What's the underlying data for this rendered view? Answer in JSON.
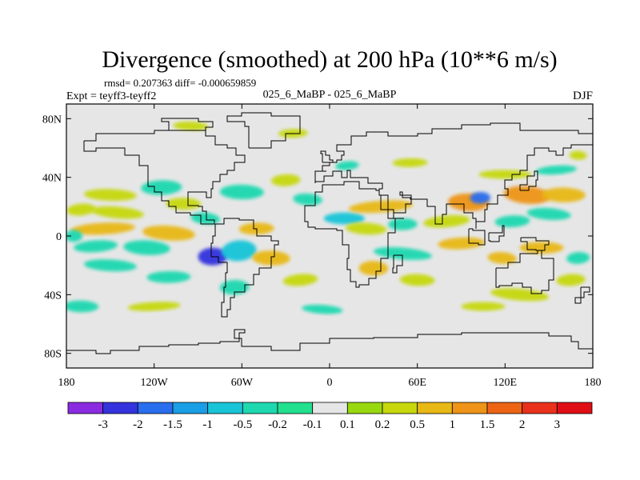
{
  "chart_data": {
    "type": "heatmap",
    "title": "Divergence (smoothed) at 200 hPa (10**6 m/s)",
    "stats_text": "rmsd= 0.207363 diff= -0.000659859",
    "expt_text": "Expt = teyff3-teyff2",
    "case_text": "025_6_MaBP - 025_6_MaBP",
    "season": "DJF",
    "x_range": [
      -180,
      180
    ],
    "y_range": [
      -90,
      90
    ],
    "x_ticks": [
      {
        "value": -180,
        "label": "180"
      },
      {
        "value": -120,
        "label": "120W"
      },
      {
        "value": -60,
        "label": "60W"
      },
      {
        "value": 0,
        "label": "0"
      },
      {
        "value": 60,
        "label": "60E"
      },
      {
        "value": 120,
        "label": "120E"
      },
      {
        "value": 180,
        "label": "180"
      }
    ],
    "y_ticks": [
      {
        "value": 80,
        "label": "80N"
      },
      {
        "value": 40,
        "label": "40N"
      },
      {
        "value": 0,
        "label": "0"
      },
      {
        "value": -40,
        "label": "40S"
      },
      {
        "value": -80,
        "label": "80S"
      }
    ],
    "background_color": "#e6e6e6",
    "colorbar": {
      "labels": [
        "-3",
        "-2",
        "-1.5",
        "-1",
        "-0.5",
        "-0.2",
        "-0.1",
        "0.1",
        "0.2",
        "0.5",
        "1",
        "1.5",
        "2",
        "3"
      ],
      "colors": [
        "#8a2be2",
        "#3333dd",
        "#2a6ef0",
        "#1a9ee6",
        "#18c4d8",
        "#1ed8b0",
        "#22e08e",
        "#e6e6e6",
        "#98d80e",
        "#c6d80c",
        "#e8b814",
        "#ee9418",
        "#ec6414",
        "#e8301a",
        "#e00e14"
      ]
    },
    "anomalies": [
      {
        "lon": -170,
        "lat": 18,
        "rx": 10,
        "ry": 4,
        "v": 0.3
      },
      {
        "lon": -150,
        "lat": 28,
        "rx": 18,
        "ry": 4,
        "v": 0.4
      },
      {
        "lon": -115,
        "lat": 33,
        "rx": 14,
        "ry": 5,
        "v": -0.35
      },
      {
        "lon": -145,
        "lat": 16,
        "rx": 18,
        "ry": 4,
        "v": 0.35
      },
      {
        "lon": -100,
        "lat": 22,
        "rx": 12,
        "ry": 4,
        "v": 0.3
      },
      {
        "lon": -155,
        "lat": 5,
        "rx": 22,
        "ry": 4,
        "v": 0.6
      },
      {
        "lon": -110,
        "lat": 2,
        "rx": 18,
        "ry": 5,
        "v": 0.5
      },
      {
        "lon": -175,
        "lat": 0,
        "rx": 6,
        "ry": 4,
        "v": -0.3
      },
      {
        "lon": -160,
        "lat": -7,
        "rx": 15,
        "ry": 4,
        "v": -0.4
      },
      {
        "lon": -125,
        "lat": -8,
        "rx": 16,
        "ry": 5,
        "v": -0.5
      },
      {
        "lon": -80,
        "lat": -14,
        "rx": 10,
        "ry": 6,
        "v": -2.5
      },
      {
        "lon": -62,
        "lat": -10,
        "rx": 12,
        "ry": 7,
        "v": -0.9
      },
      {
        "lon": -40,
        "lat": -15,
        "rx": 13,
        "ry": 5,
        "v": 0.8
      },
      {
        "lon": -50,
        "lat": 5,
        "rx": 12,
        "ry": 4,
        "v": 0.5
      },
      {
        "lon": -85,
        "lat": 12,
        "rx": 10,
        "ry": 4,
        "v": -0.5
      },
      {
        "lon": -60,
        "lat": 30,
        "rx": 15,
        "ry": 5,
        "v": -0.5
      },
      {
        "lon": -30,
        "lat": 38,
        "rx": 10,
        "ry": 4,
        "v": 0.3
      },
      {
        "lon": -15,
        "lat": 25,
        "rx": 10,
        "ry": 4,
        "v": -0.4
      },
      {
        "lon": 10,
        "lat": 12,
        "rx": 14,
        "ry": 4,
        "v": -0.6
      },
      {
        "lon": 35,
        "lat": 20,
        "rx": 22,
        "ry": 4,
        "v": 0.5
      },
      {
        "lon": 25,
        "lat": 5,
        "rx": 14,
        "ry": 4,
        "v": 0.4
      },
      {
        "lon": 50,
        "lat": 8,
        "rx": 10,
        "ry": 4,
        "v": -0.4
      },
      {
        "lon": 80,
        "lat": 10,
        "rx": 16,
        "ry": 4,
        "v": 0.3
      },
      {
        "lon": 95,
        "lat": 23,
        "rx": 14,
        "ry": 6,
        "v": 1.0
      },
      {
        "lon": 103,
        "lat": 26,
        "rx": 7,
        "ry": 4,
        "v": -1.8
      },
      {
        "lon": 135,
        "lat": 28,
        "rx": 16,
        "ry": 6,
        "v": 1.1
      },
      {
        "lon": 160,
        "lat": 28,
        "rx": 15,
        "ry": 5,
        "v": 0.5
      },
      {
        "lon": 125,
        "lat": 10,
        "rx": 12,
        "ry": 4,
        "v": -0.5
      },
      {
        "lon": 150,
        "lat": 15,
        "rx": 15,
        "ry": 4,
        "v": -0.3
      },
      {
        "lon": 120,
        "lat": 42,
        "rx": 18,
        "ry": 3,
        "v": 0.3
      },
      {
        "lon": 155,
        "lat": 45,
        "rx": 14,
        "ry": 3,
        "v": -0.3
      },
      {
        "lon": 170,
        "lat": 55,
        "rx": 6,
        "ry": 3,
        "v": 0.3
      },
      {
        "lon": 55,
        "lat": 50,
        "rx": 12,
        "ry": 3,
        "v": 0.3
      },
      {
        "lon": 12,
        "lat": 48,
        "rx": 8,
        "ry": 3,
        "v": -0.3
      },
      {
        "lon": -95,
        "lat": 75,
        "rx": 12,
        "ry": 3,
        "v": 0.3
      },
      {
        "lon": -25,
        "lat": 70,
        "rx": 10,
        "ry": 3,
        "v": 0.3
      },
      {
        "lon": 50,
        "lat": -12,
        "rx": 20,
        "ry": 4,
        "v": -0.5
      },
      {
        "lon": 30,
        "lat": -22,
        "rx": 10,
        "ry": 5,
        "v": 0.6
      },
      {
        "lon": 90,
        "lat": -5,
        "rx": 16,
        "ry": 4,
        "v": 0.5
      },
      {
        "lon": 118,
        "lat": -15,
        "rx": 10,
        "ry": 4,
        "v": 0.5
      },
      {
        "lon": 145,
        "lat": -8,
        "rx": 15,
        "ry": 4,
        "v": 0.5
      },
      {
        "lon": 170,
        "lat": -15,
        "rx": 8,
        "ry": 4,
        "v": -0.4
      },
      {
        "lon": -150,
        "lat": -20,
        "rx": 18,
        "ry": 4,
        "v": -0.35
      },
      {
        "lon": -110,
        "lat": -28,
        "rx": 15,
        "ry": 4,
        "v": -0.3
      },
      {
        "lon": -20,
        "lat": -30,
        "rx": 12,
        "ry": 4,
        "v": 0.3
      },
      {
        "lon": 60,
        "lat": -30,
        "rx": 12,
        "ry": 4,
        "v": 0.3
      },
      {
        "lon": -65,
        "lat": -35,
        "rx": 10,
        "ry": 5,
        "v": -0.4
      },
      {
        "lon": 130,
        "lat": -40,
        "rx": 20,
        "ry": 4,
        "v": 0.3
      },
      {
        "lon": -170,
        "lat": -48,
        "rx": 12,
        "ry": 4,
        "v": -0.35
      },
      {
        "lon": -120,
        "lat": -48,
        "rx": 18,
        "ry": 3,
        "v": 0.3
      },
      {
        "lon": -5,
        "lat": -50,
        "rx": 14,
        "ry": 3,
        "v": -0.3
      },
      {
        "lon": 105,
        "lat": -48,
        "rx": 15,
        "ry": 3,
        "v": 0.3
      },
      {
        "lon": 165,
        "lat": -30,
        "rx": 10,
        "ry": 4,
        "v": 0.3
      }
    ]
  }
}
